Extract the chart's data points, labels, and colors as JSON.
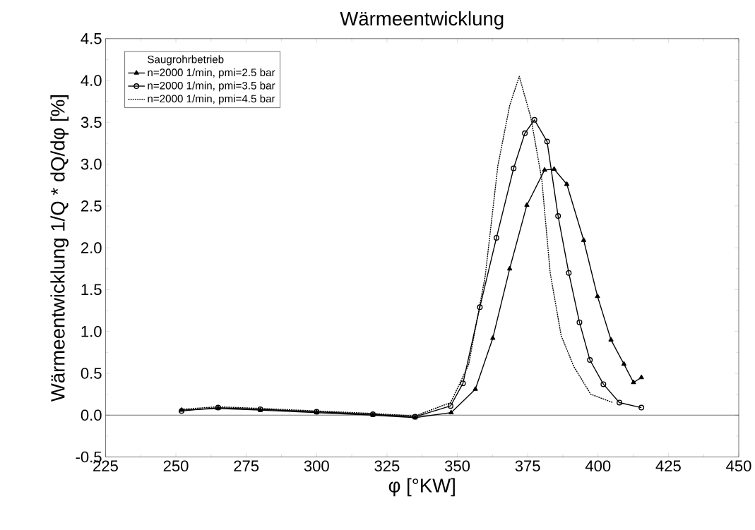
{
  "chart_data": {
    "type": "line",
    "title": "Wärmeentwicklung",
    "xlabel": "φ [°KW]",
    "ylabel": "Wärmeentwicklung 1/Q * dQ/dφ [%]",
    "legend_title": "Saugrohrbetrieb",
    "legend": "top left",
    "grid": false,
    "xlim": [
      225,
      450
    ],
    "ylim": [
      -0.5,
      4.5
    ],
    "xticks": [
      225,
      250,
      275,
      300,
      325,
      350,
      375,
      400,
      425,
      450
    ],
    "yticks": [
      {
        "value": -0.5,
        "label": "-0.5"
      },
      {
        "value": 0,
        "label": "0.0"
      },
      {
        "value": 0.5,
        "label": "0.5"
      },
      {
        "value": 1,
        "label": "1.0"
      },
      {
        "value": 1.5,
        "label": "1.5"
      },
      {
        "value": 2,
        "label": "2.0"
      },
      {
        "value": 2.5,
        "label": "2.5"
      },
      {
        "value": 3,
        "label": "3.0"
      },
      {
        "value": 3.5,
        "label": "3.5"
      },
      {
        "value": 4,
        "label": "4.0"
      },
      {
        "value": 4.5,
        "label": "4.5"
      }
    ],
    "ref_lines": [
      {
        "axis": "y",
        "value": 0,
        "color": "#000000"
      }
    ],
    "series": [
      {
        "name": "n=2000 1/min, pmi=2.5 bar",
        "color": "#000000",
        "marker": "triangle",
        "line_style": "solid",
        "x": [
          252,
          265,
          280,
          300,
          320,
          335,
          347.8,
          356.4,
          362.6,
          368.6,
          374.7,
          381,
          384.4,
          388.9,
          394.9,
          399.8,
          404.6,
          409.2,
          412.6,
          415.4
        ],
        "values": [
          0.06,
          0.08,
          0.06,
          0.03,
          0.0,
          -0.03,
          0.03,
          0.31,
          0.92,
          1.75,
          2.51,
          2.93,
          2.94,
          2.76,
          2.09,
          1.42,
          0.9,
          0.61,
          0.39,
          0.45
        ]
      },
      {
        "name": "n=2000 1/min, pmi=3.5 bar",
        "color": "#000000",
        "marker": "circle",
        "line_style": "solid",
        "x": [
          252,
          265,
          280,
          300,
          320,
          335,
          347.6,
          352,
          358,
          363.9,
          370,
          374,
          377.4,
          381.9,
          385.8,
          389.6,
          393.4,
          397.1,
          401.9,
          407.6,
          415.4
        ],
        "values": [
          0.05,
          0.09,
          0.07,
          0.04,
          0.01,
          -0.02,
          0.11,
          0.38,
          1.29,
          2.12,
          2.95,
          3.37,
          3.53,
          3.27,
          2.38,
          1.7,
          1.11,
          0.66,
          0.37,
          0.15,
          0.09
        ]
      },
      {
        "name": "n=2000 1/min, pmi=4.5 bar",
        "color": "#000000",
        "marker": "none",
        "line_style": "dotted",
        "x": [
          252,
          265,
          280,
          300,
          320,
          335,
          347.6,
          354,
          359.9,
          364.4,
          368.6,
          372,
          376.1,
          380,
          383,
          386.9,
          391.4,
          397.4,
          405.3
        ],
        "values": [
          0.07,
          0.1,
          0.08,
          0.05,
          0.02,
          -0.01,
          0.15,
          0.6,
          1.66,
          2.98,
          3.7,
          4.05,
          3.56,
          2.82,
          1.7,
          0.95,
          0.58,
          0.25,
          0.15
        ]
      }
    ]
  }
}
